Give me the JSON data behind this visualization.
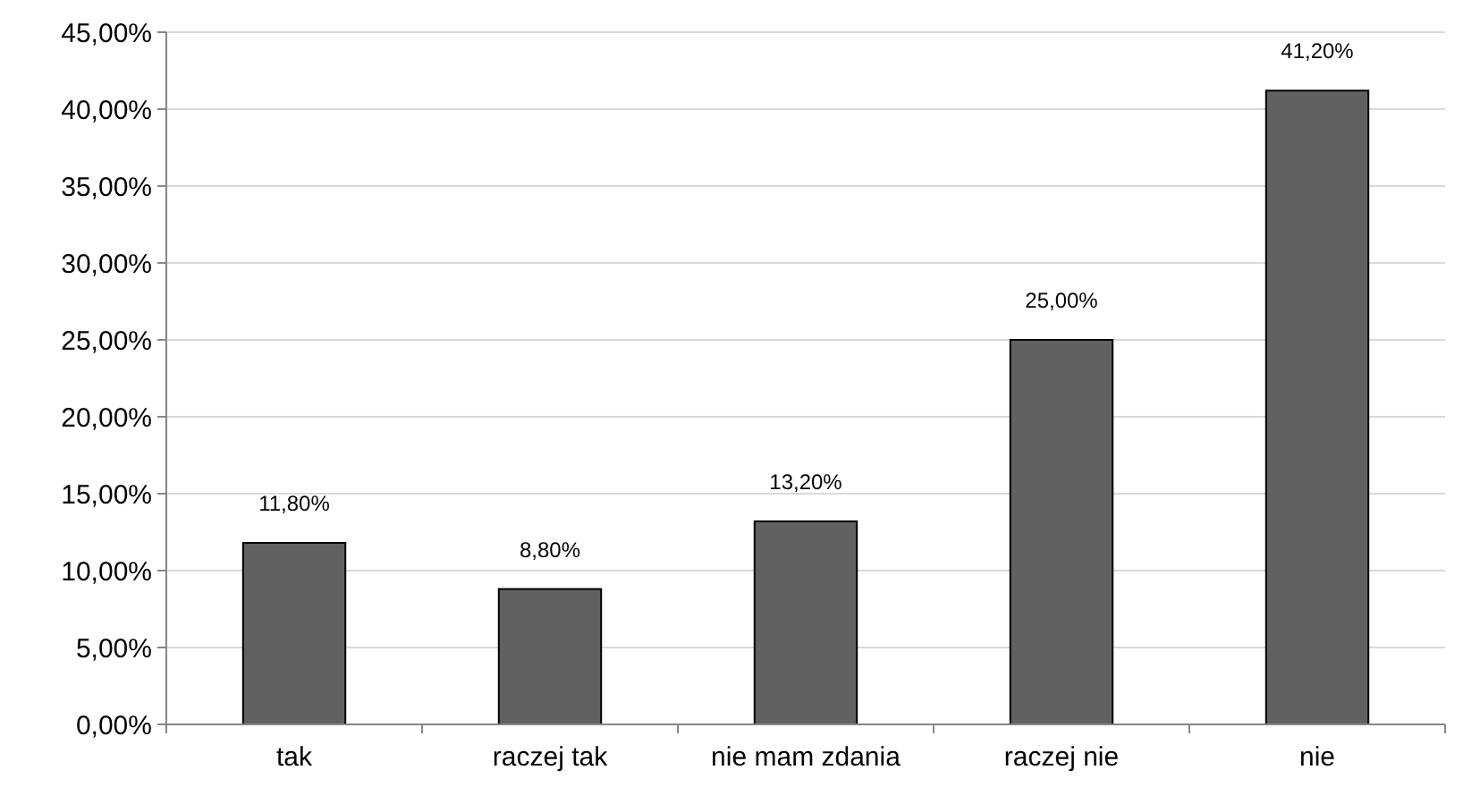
{
  "chart_data": {
    "type": "bar",
    "categories": [
      "tak",
      "raczej tak",
      "nie mam zdania",
      "raczej nie",
      "nie"
    ],
    "values": [
      11.8,
      8.8,
      13.2,
      25.0,
      41.2
    ],
    "value_labels": [
      "11,80%",
      "8,80%",
      "13,20%",
      "25,00%",
      "41,20%"
    ],
    "color": "#616163",
    "ylim": [
      0,
      45
    ],
    "yticks": [
      {
        "value": 0,
        "label": "0,00%"
      },
      {
        "value": 5,
        "label": "5,00%"
      },
      {
        "value": 10,
        "label": "10,00%"
      },
      {
        "value": 15,
        "label": "15,00%"
      },
      {
        "value": 20,
        "label": "20,00%"
      },
      {
        "value": 25,
        "label": "25,00%"
      },
      {
        "value": 30,
        "label": "30,00%"
      },
      {
        "value": 35,
        "label": "35,00%"
      },
      {
        "value": 40,
        "label": "40,00%"
      },
      {
        "value": 45,
        "label": "45,00%"
      }
    ],
    "grid": "y"
  }
}
